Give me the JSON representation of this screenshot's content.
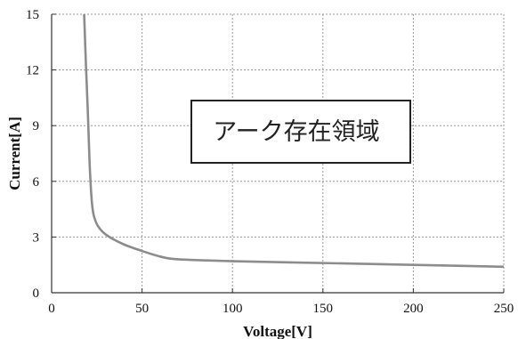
{
  "chart_data": {
    "type": "line",
    "xlabel": "Voltage[V]",
    "ylabel": "Current[A]",
    "xlim": [
      0,
      250
    ],
    "ylim": [
      0,
      15
    ],
    "xticks": [
      0,
      50,
      100,
      150,
      200,
      250
    ],
    "yticks": [
      0,
      3,
      6,
      9,
      12,
      15
    ],
    "x_tick_labels": [
      "0",
      "50",
      "100",
      "150",
      "200",
      "250"
    ],
    "y_tick_labels": [
      "0",
      "3",
      "6",
      "9",
      "12",
      "15"
    ],
    "grid": true,
    "annotation": "アーク存在領域",
    "series": [
      {
        "color": "#8c8c8c",
        "x": [
          18,
          19,
          20,
          21,
          22,
          23,
          25,
          28,
          32,
          40,
          50,
          60,
          70,
          100,
          150,
          200,
          250
        ],
        "y": [
          15.0,
          12.2,
          9.8,
          7.0,
          5.2,
          4.3,
          3.7,
          3.3,
          3.0,
          2.6,
          2.25,
          1.95,
          1.8,
          1.7,
          1.6,
          1.5,
          1.4
        ]
      }
    ]
  }
}
